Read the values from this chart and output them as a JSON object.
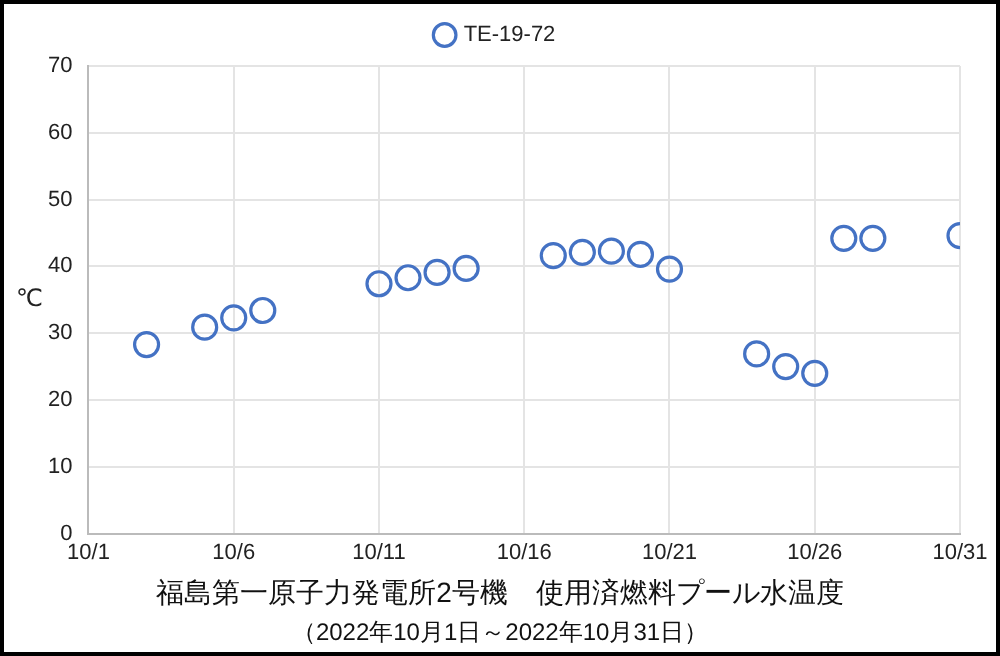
{
  "chart_data": {
    "type": "scatter",
    "title": "福島第一原子力発電所2号機　使用済燃料プール水温度",
    "subtitle": "（2022年10月1日～2022年10月31日）",
    "ylabel": "℃",
    "x": [
      "2022-10-03",
      "2022-10-05",
      "2022-10-06",
      "2022-10-07",
      "2022-10-11",
      "2022-10-12",
      "2022-10-13",
      "2022-10-14",
      "2022-10-17",
      "2022-10-18",
      "2022-10-19",
      "2022-10-20",
      "2022-10-21",
      "2022-10-24",
      "2022-10-25",
      "2022-10-26",
      "2022-10-27",
      "2022-10-28",
      "2022-10-31"
    ],
    "series": [
      {
        "name": "TE-19-72",
        "color": "#4472c4",
        "values": [
          28.3,
          30.9,
          32.3,
          33.4,
          37.4,
          38.3,
          39.1,
          39.7,
          41.6,
          42.1,
          42.3,
          41.8,
          39.6,
          26.9,
          25.0,
          24.0,
          44.2,
          44.2,
          44.6
        ]
      }
    ],
    "xlim": [
      "2022-10-01",
      "2022-10-31"
    ],
    "xticks": [
      {
        "value": "2022-10-01",
        "label": "10/1"
      },
      {
        "value": "2022-10-06",
        "label": "10/6"
      },
      {
        "value": "2022-10-11",
        "label": "10/11"
      },
      {
        "value": "2022-10-16",
        "label": "10/16"
      },
      {
        "value": "2022-10-21",
        "label": "10/21"
      },
      {
        "value": "2022-10-26",
        "label": "10/26"
      },
      {
        "value": "2022-10-31",
        "label": "10/31"
      }
    ],
    "ylim": [
      0,
      70
    ],
    "yticks": [
      0,
      10,
      20,
      30,
      40,
      50,
      60,
      70
    ],
    "grid": true,
    "legend": "top",
    "marker": "circle"
  }
}
